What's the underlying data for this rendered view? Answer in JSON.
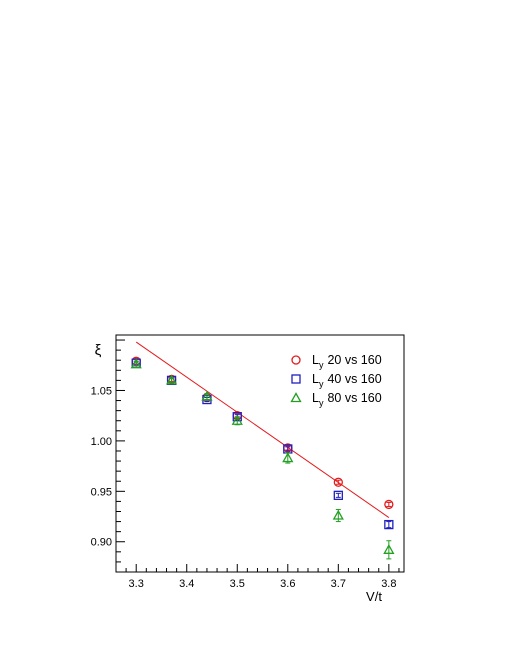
{
  "chart_data": {
    "type": "scatter",
    "title": "",
    "xlabel": "V/t",
    "ylabel": "ξ",
    "xlim": [
      3.26,
      3.83
    ],
    "ylim": [
      0.87,
      1.105
    ],
    "xticks": [
      3.3,
      3.4,
      3.5,
      3.6,
      3.7,
      3.8
    ],
    "xtick_labels": [
      "3.3",
      "3.4",
      "3.5",
      "3.6",
      "3.7",
      "3.8"
    ],
    "yticks": [
      0.9,
      0.95,
      1.0,
      1.05
    ],
    "ytick_labels": [
      "0.90",
      "0.95",
      "1.00",
      "1.05"
    ],
    "grid": false,
    "legend_position": "top-right",
    "series": [
      {
        "name": "20 vs 160",
        "legend_prefix": "L",
        "legend_sub": "y",
        "marker": "circle",
        "color": "#e41a1c",
        "x": [
          3.3,
          3.37,
          3.44,
          3.5,
          3.6,
          3.7,
          3.8
        ],
        "y": [
          1.079,
          1.061,
          1.043,
          1.025,
          0.993,
          0.959,
          0.937
        ],
        "err": [
          0.003,
          0.002,
          0.002,
          0.002,
          0.002,
          0.002,
          0.002
        ]
      },
      {
        "name": "40 vs 160",
        "legend_prefix": "L",
        "legend_sub": "y",
        "marker": "square",
        "color": "#1f1fbf",
        "x": [
          3.3,
          3.37,
          3.44,
          3.5,
          3.6,
          3.7,
          3.8
        ],
        "y": [
          1.077,
          1.06,
          1.041,
          1.024,
          0.992,
          0.946,
          0.917
        ],
        "err": [
          0.002,
          0.002,
          0.002,
          0.002,
          0.002,
          0.002,
          0.003
        ]
      },
      {
        "name": "80 vs 160",
        "legend_prefix": "L",
        "legend_sub": "y",
        "marker": "triangle",
        "color": "#22a022",
        "x": [
          3.3,
          3.37,
          3.44,
          3.5,
          3.6,
          3.7,
          3.8
        ],
        "y": [
          1.076,
          1.06,
          1.044,
          1.02,
          0.983,
          0.926,
          0.892
        ],
        "err": [
          0.003,
          0.002,
          0.003,
          0.004,
          0.005,
          0.006,
          0.009
        ]
      }
    ],
    "fit_line": {
      "color": "#e41a1c",
      "x": [
        3.3,
        3.8
      ],
      "y": [
        1.098,
        0.924
      ]
    }
  }
}
